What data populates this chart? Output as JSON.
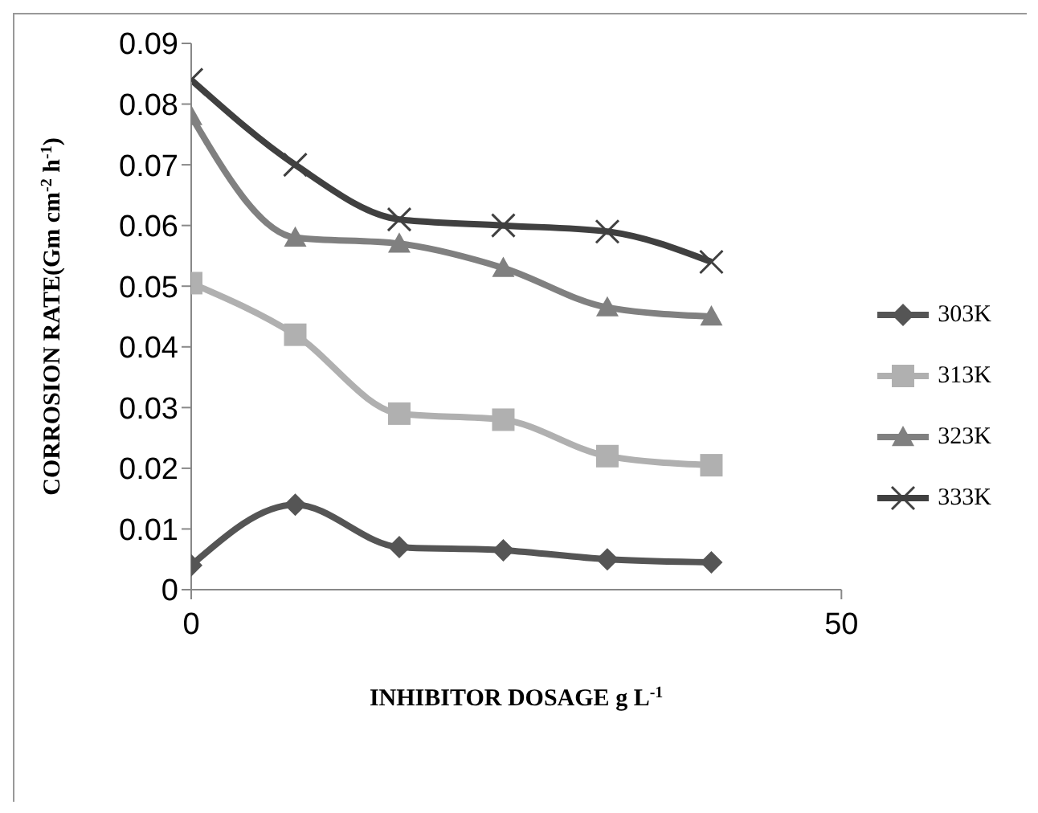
{
  "chart_data": {
    "type": "line",
    "xlabel": "INHIBITOR DOSAGE g L$^{-1}$",
    "ylabel": "CORROSION RATE(Gm cm$^{-2}$ h$^{-1}$)",
    "x": [
      0,
      8,
      16,
      24,
      32,
      40
    ],
    "xlim": [
      0,
      50
    ],
    "xticks": [
      0,
      50
    ],
    "ylim": [
      0,
      0.09
    ],
    "yticks": [
      0,
      0.01,
      0.02,
      0.03,
      0.04,
      0.05,
      0.06,
      0.07,
      0.08,
      0.09
    ],
    "grid": false,
    "legend": "right",
    "series": [
      {
        "name": "303K",
        "color": "#555555",
        "marker": "diamond",
        "values": [
          0.004,
          0.014,
          0.007,
          0.0065,
          0.005,
          0.0045
        ]
      },
      {
        "name": "313K",
        "color": "#b0b0b0",
        "marker": "square",
        "values": [
          0.0505,
          0.042,
          0.029,
          0.028,
          0.022,
          0.0205
        ]
      },
      {
        "name": "323K",
        "color": "#808080",
        "marker": "triangle",
        "values": [
          0.078,
          0.058,
          0.057,
          0.053,
          0.0465,
          0.045
        ]
      },
      {
        "name": "333K",
        "color": "#404040",
        "marker": "cross",
        "values": [
          0.084,
          0.07,
          0.061,
          0.06,
          0.059,
          0.054
        ]
      }
    ]
  }
}
